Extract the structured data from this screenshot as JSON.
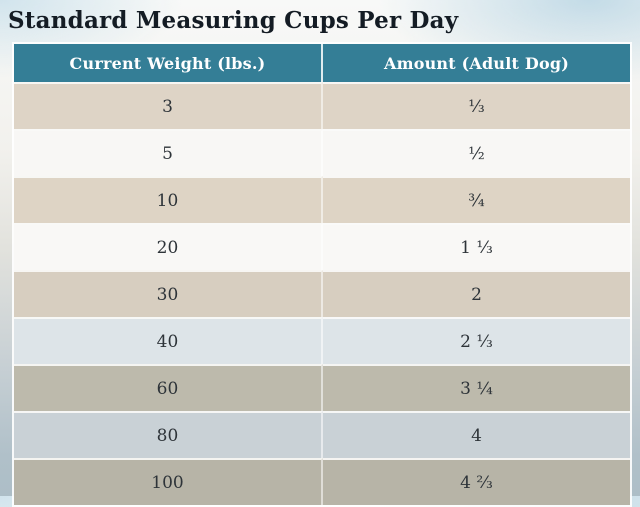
{
  "chart_data": {
    "type": "table",
    "title": "Standard Measuring Cups Per Day",
    "columns": [
      "Current Weight (lbs.)",
      "Amount (Adult Dog)"
    ],
    "rows": [
      [
        "3",
        "⅓"
      ],
      [
        "5",
        "½"
      ],
      [
        "10",
        "¾"
      ],
      [
        "20",
        "1 ⅓"
      ],
      [
        "30",
        "2"
      ],
      [
        "40",
        "2 ⅓"
      ],
      [
        "60",
        "3 ¼"
      ],
      [
        "80",
        "4"
      ],
      [
        "100",
        "4 ⅔"
      ]
    ],
    "weights_lbs": [
      3,
      5,
      10,
      20,
      30,
      40,
      60,
      80,
      100
    ],
    "cups_per_day": [
      0.333,
      0.5,
      0.75,
      1.333,
      2,
      2.333,
      3.25,
      4,
      4.667
    ],
    "legend_position": "none",
    "grid": "white 2px separators between rows and columns"
  },
  "theme": {
    "title_color": "#141c24",
    "header_bg": "#347e96",
    "header_text": "#ffffff",
    "cell_text": "#2e3439",
    "page_top_tint": "#dce9ef",
    "page_bottom_tint": "#adbec7",
    "row_colors": [
      "#ded4c6",
      "#f8f7f5",
      "#ded4c5",
      "#f9f8f6",
      "#d7cec0",
      "#dde4e8",
      "#bdbaac",
      "#c9d1d6",
      "#b7b4a7"
    ]
  }
}
